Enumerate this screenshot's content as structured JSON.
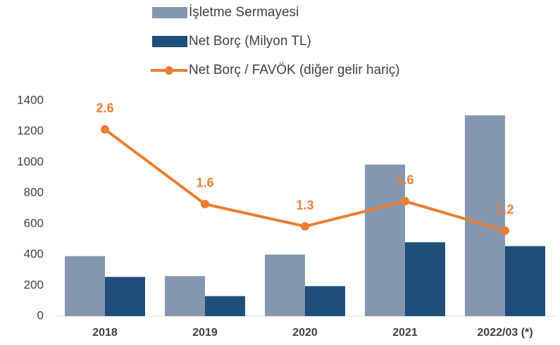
{
  "chart_data": {
    "type": "bar",
    "categories": [
      "2018",
      "2019",
      "2020",
      "2021",
      "2022/03 (*)"
    ],
    "series": [
      {
        "name": "İşletme Sermayesi",
        "type": "bar",
        "color": "#8497b0",
        "values": [
          390,
          260,
          400,
          985,
          1305
        ]
      },
      {
        "name": "Net Borç (Milyon TL)",
        "type": "bar",
        "color": "#1f4e79",
        "values": [
          255,
          130,
          195,
          480,
          455
        ]
      },
      {
        "name": "Net Borç / FAVÖK (diğer gelir hariç)",
        "type": "line",
        "axis": "y2",
        "color": "#ed7d31",
        "values": [
          2.6,
          1.56,
          1.25,
          1.6,
          1.19
        ],
        "value_labels": [
          "2.6",
          "1.6",
          "1.3",
          "1.6",
          "1.2"
        ]
      }
    ],
    "ylim": [
      0,
      1400
    ],
    "yticks": [
      0,
      200,
      400,
      600,
      800,
      1000,
      1200,
      1400
    ],
    "y2lim": [
      0,
      3
    ],
    "legend": "top"
  }
}
